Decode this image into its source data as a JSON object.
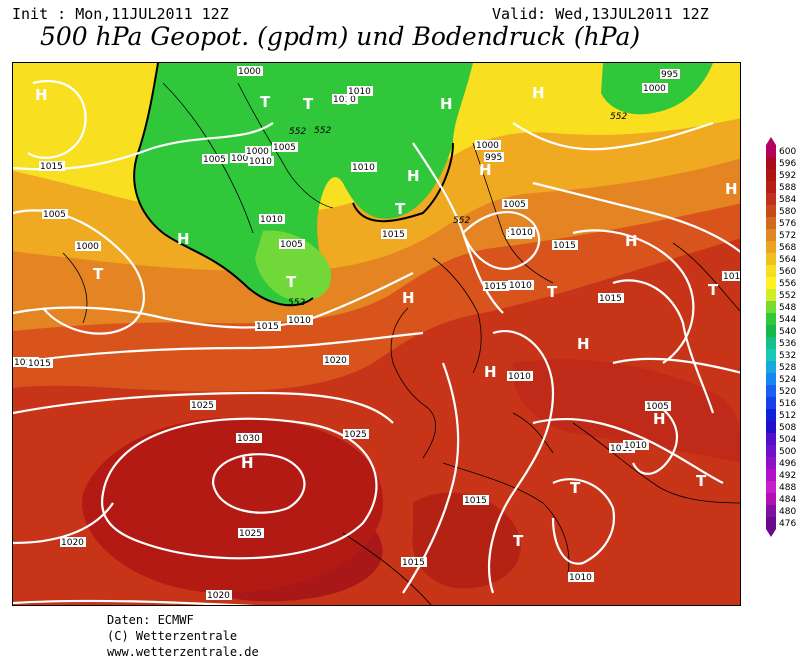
{
  "header": {
    "init": "Init : Mon,11JUL2011 12Z",
    "valid": "Valid: Wed,13JUL2011 12Z",
    "title": "500 hPa Geopot. (gpdm) und Bodendruck (hPa)"
  },
  "isobar_labels": [
    "1000",
    "1010",
    "1010",
    "1015",
    "1005",
    "1005",
    "1010",
    "1005",
    "1000",
    "1010",
    "1005",
    "1015",
    "1005",
    "1000",
    "1010",
    "1015",
    "1010",
    "1015",
    "1020",
    "1025",
    "1030",
    "1025",
    "1020",
    "1020",
    "1025",
    "1015",
    "1015",
    "1010",
    "1010",
    "1015",
    "1015",
    "1010",
    "1010",
    "1005",
    "1015",
    "1010",
    "1010",
    "1000",
    "995",
    "1000",
    "995",
    "1005",
    "1010",
    "1010",
    "1015"
  ],
  "geopot_labels": [
    "552",
    "552",
    "552",
    "552",
    "552"
  ],
  "pressure_centers": [
    "H",
    "T",
    "T",
    "T",
    "T",
    "H",
    "T",
    "H",
    "T",
    "H",
    "H",
    "H",
    "H",
    "H",
    "T",
    "H",
    "T",
    "H",
    "T",
    "H",
    "T",
    "H",
    "T",
    "H"
  ],
  "legend": {
    "values": [
      "600",
      "596",
      "592",
      "588",
      "584",
      "580",
      "576",
      "572",
      "568",
      "564",
      "560",
      "556",
      "552",
      "548",
      "544",
      "540",
      "536",
      "532",
      "528",
      "524",
      "520",
      "516",
      "512",
      "508",
      "504",
      "500",
      "496",
      "492",
      "488",
      "484",
      "480",
      "476"
    ],
    "colors": [
      "#b40060",
      "#a80a20",
      "#b01410",
      "#b42015",
      "#c0301a",
      "#c84a1c",
      "#d26a1e",
      "#e08820",
      "#eaa422",
      "#f0c020",
      "#f8de20",
      "#fff220",
      "#d0ee28",
      "#78dc30",
      "#30c838",
      "#18b848",
      "#18c088",
      "#18c8b8",
      "#18a8e0",
      "#1888f0",
      "#1860f0",
      "#1840e8",
      "#1020d8",
      "#2010c8",
      "#5010c8",
      "#7010c8",
      "#9010c8",
      "#b010c8",
      "#c820c8",
      "#b010b0",
      "#8010a0",
      "#6a0a8a"
    ]
  },
  "credits": {
    "line1": "Daten: ECMWF",
    "line2": "(C) Wetterzentrale",
    "line3": "www.wetterzentrale.de"
  }
}
